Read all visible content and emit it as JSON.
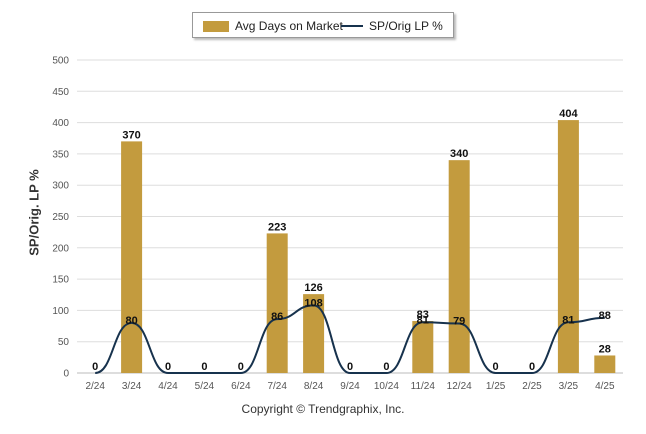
{
  "chart_data": {
    "type": "bar",
    "categories": [
      "2/24",
      "3/24",
      "4/24",
      "5/24",
      "6/24",
      "7/24",
      "8/24",
      "9/24",
      "10/24",
      "11/24",
      "12/24",
      "1/25",
      "2/25",
      "3/25",
      "4/25"
    ],
    "series": [
      {
        "name": "Avg Days on Market",
        "type": "bar",
        "color": "#c39b3e",
        "values": [
          0,
          370,
          0,
          0,
          0,
          223,
          126,
          0,
          0,
          83,
          340,
          0,
          0,
          404,
          28
        ]
      },
      {
        "name": "SP/Orig LP %",
        "type": "line",
        "color": "#17324d",
        "values": [
          0,
          80,
          0,
          0,
          0,
          86,
          108,
          0,
          0,
          81,
          79,
          0,
          0,
          81,
          88
        ]
      }
    ],
    "ylabel": "SP/Orig. LP %",
    "ylim": [
      0,
      500
    ],
    "yticks": [
      0,
      50,
      100,
      150,
      200,
      250,
      300,
      350,
      400,
      450,
      500
    ],
    "grid": "horizontal",
    "legend": "top-center",
    "colors": {
      "bar": "#c39b3e",
      "line": "#17324d",
      "grid": "#dddddd"
    }
  },
  "footer": "Copyright © Trendgraphix, Inc."
}
